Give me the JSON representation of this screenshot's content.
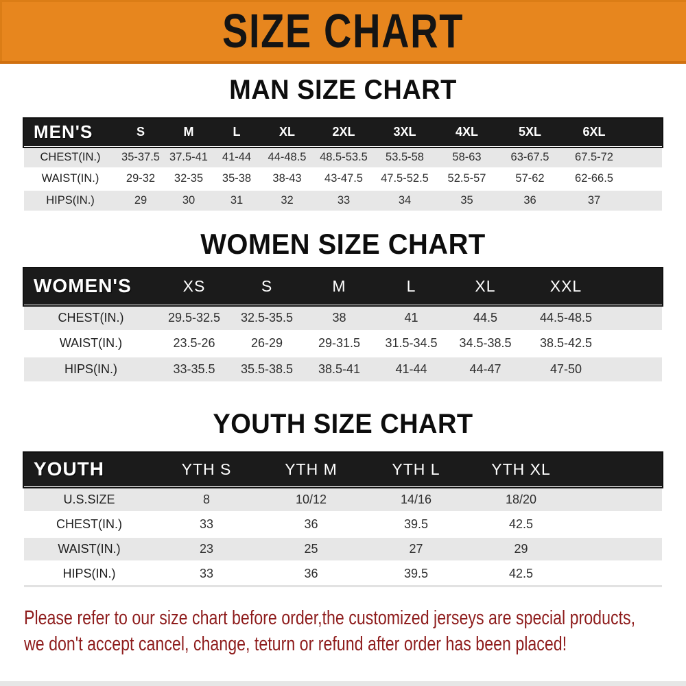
{
  "banner": {
    "title": "SIZE CHART",
    "bg_color": "#E7861E"
  },
  "sections": [
    {
      "title": "MAN SIZE CHART",
      "header_label": "MEN'S",
      "columns": [
        "S",
        "M",
        "L",
        "XL",
        "2XL",
        "3XL",
        "4XL",
        "5XL",
        "6XL"
      ],
      "rows": [
        {
          "label": "CHEST(IN.)",
          "values": [
            "35-37.5",
            "37.5-41",
            "41-44",
            "44-48.5",
            "48.5-53.5",
            "53.5-58",
            "58-63",
            "63-67.5",
            "67.5-72"
          ]
        },
        {
          "label": "WAIST(IN.)",
          "values": [
            "29-32",
            "32-35",
            "35-38",
            "38-43",
            "43-47.5",
            "47.5-52.5",
            "52.5-57",
            "57-62",
            "62-66.5"
          ]
        },
        {
          "label": "HIPS(IN.)",
          "values": [
            "29",
            "30",
            "31",
            "32",
            "33",
            "34",
            "35",
            "36",
            "37"
          ]
        }
      ]
    },
    {
      "title": "WOMEN SIZE CHART",
      "header_label": "WOMEN'S",
      "columns": [
        "XS",
        "S",
        "M",
        "L",
        "XL",
        "XXL"
      ],
      "rows": [
        {
          "label": "CHEST(IN.)",
          "values": [
            "29.5-32.5",
            "32.5-35.5",
            "38",
            "41",
            "44.5",
            "44.5-48.5"
          ]
        },
        {
          "label": "WAIST(IN.)",
          "values": [
            "23.5-26",
            "26-29",
            "29-31.5",
            "31.5-34.5",
            "34.5-38.5",
            "38.5-42.5"
          ]
        },
        {
          "label": "HIPS(IN.)",
          "values": [
            "33-35.5",
            "35.5-38.5",
            "38.5-41",
            "41-44",
            "44-47",
            "47-50"
          ]
        }
      ]
    },
    {
      "title": "YOUTH SIZE CHART",
      "header_label": "YOUTH",
      "columns": [
        "YTH S",
        "YTH M",
        "YTH L",
        "YTH XL"
      ],
      "rows": [
        {
          "label": "U.S.SIZE",
          "values": [
            "8",
            "10/12",
            "14/16",
            "18/20"
          ]
        },
        {
          "label": "CHEST(IN.)",
          "values": [
            "33",
            "36",
            "39.5",
            "42.5"
          ]
        },
        {
          "label": "WAIST(IN.)",
          "values": [
            "23",
            "25",
            "27",
            "29"
          ]
        },
        {
          "label": "HIPS(IN.)",
          "values": [
            "33",
            "36",
            "39.5",
            "42.5"
          ]
        }
      ]
    }
  ],
  "footer": {
    "line1": "Please refer to our size chart before order,the customized jerseys are special products,",
    "line2": "we don't accept cancel, change, teturn or refund after order has been placed!",
    "text_color": "#8E1C1C"
  }
}
